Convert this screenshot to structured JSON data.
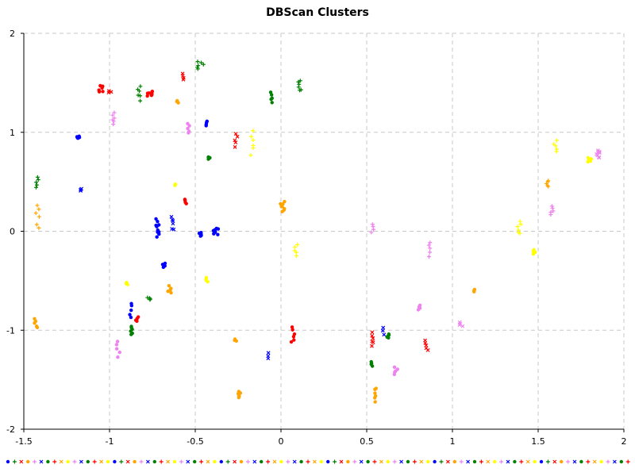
{
  "chart_data": {
    "type": "scatter",
    "title": "DBScan Clusters",
    "xlabel": "",
    "ylabel": "",
    "xlim": [
      -1.5,
      2
    ],
    "ylim": [
      -2,
      2
    ],
    "grid": true,
    "x_ticks": [
      "-1.5",
      "-1",
      "-0.5",
      "0",
      "0.5",
      "1",
      "1.5",
      "2"
    ],
    "x_tick_values": [
      -1.5,
      -1,
      -0.5,
      0,
      0.5,
      1,
      1.5,
      2
    ],
    "y_ticks": [
      "2",
      "1",
      "0",
      "-1",
      "-2"
    ],
    "y_tick_values": [
      2,
      1,
      0,
      -1,
      -2
    ],
    "palette": [
      "#0000ff",
      "#008000",
      "#ff0000",
      "#ffa500",
      "#ee82ee",
      "#ffff00"
    ],
    "legend_strip": {
      "colors": [
        "#0000ff",
        "#008000",
        "#ff0000",
        "#ffa500",
        "#ee82ee",
        "#0000ff",
        "#008000",
        "#ff0000",
        "#ffa500",
        "#ffff00",
        "#ee82ee",
        "#0000ff",
        "#008000",
        "#ff0000",
        "#ffa500",
        "#ffff00"
      ],
      "markers": [
        "dot",
        "plus",
        "cross",
        "dot",
        "plus",
        "cross",
        "dot",
        "plus",
        "cross",
        "dot",
        "plus",
        "cross",
        "dot",
        "plus",
        "cross",
        "dot"
      ]
    },
    "clusters": [
      {
        "color": "#ff0000",
        "marker": "dot",
        "x": -1.05,
        "y": 1.44,
        "n": 6,
        "dx": 0.012,
        "dy": 0.035
      },
      {
        "color": "#ff0000",
        "marker": "cross",
        "x": -1.0,
        "y": 1.41,
        "n": 3,
        "dx": 0.01,
        "dy": 0.01
      },
      {
        "color": "#ff0000",
        "marker": "dot",
        "x": -0.77,
        "y": 1.39,
        "n": 8,
        "dx": 0.02,
        "dy": 0.02
      },
      {
        "color": "#008000",
        "marker": "plus",
        "x": -0.83,
        "y": 1.4,
        "n": 6,
        "dx": 0.01,
        "dy": 0.07
      },
      {
        "color": "#ff0000",
        "marker": "cross",
        "x": -0.57,
        "y": 1.56,
        "n": 4,
        "dx": 0.01,
        "dy": 0.03
      },
      {
        "color": "#008000",
        "marker": "plus",
        "x": -0.47,
        "y": 1.68,
        "n": 6,
        "dx": 0.02,
        "dy": 0.04
      },
      {
        "color": "#ffa500",
        "marker": "dot",
        "x": -0.6,
        "y": 1.31,
        "n": 3,
        "dx": 0.01,
        "dy": 0.01
      },
      {
        "color": "#ee82ee",
        "marker": "plus",
        "x": -0.98,
        "y": 1.14,
        "n": 6,
        "dx": 0.01,
        "dy": 0.05
      },
      {
        "color": "#ee82ee",
        "marker": "dot",
        "x": -0.54,
        "y": 1.04,
        "n": 5,
        "dx": 0.01,
        "dy": 0.05
      },
      {
        "color": "#0000ff",
        "marker": "dot",
        "x": -1.18,
        "y": 0.95,
        "n": 5,
        "dx": 0.01,
        "dy": 0.01
      },
      {
        "color": "#0000ff",
        "marker": "dot",
        "x": -0.44,
        "y": 1.09,
        "n": 4,
        "dx": 0.01,
        "dy": 0.02
      },
      {
        "color": "#008000",
        "marker": "dot",
        "x": -0.42,
        "y": 0.74,
        "n": 3,
        "dx": 0.01,
        "dy": 0.01
      },
      {
        "color": "#ff0000",
        "marker": "cross",
        "x": -0.26,
        "y": 0.92,
        "n": 5,
        "dx": 0.01,
        "dy": 0.06
      },
      {
        "color": "#ffff00",
        "marker": "plus",
        "x": -0.17,
        "y": 0.9,
        "n": 6,
        "dx": 0.01,
        "dy": 0.11
      },
      {
        "color": "#008000",
        "marker": "dot",
        "x": -0.06,
        "y": 1.35,
        "n": 5,
        "dx": 0.01,
        "dy": 0.05
      },
      {
        "color": "#008000",
        "marker": "plus",
        "x": 0.11,
        "y": 1.47,
        "n": 6,
        "dx": 0.01,
        "dy": 0.05
      },
      {
        "color": "#008000",
        "marker": "plus",
        "x": -1.42,
        "y": 0.5,
        "n": 5,
        "dx": 0.01,
        "dy": 0.05
      },
      {
        "color": "#ffa500",
        "marker": "plus",
        "x": -1.42,
        "y": 0.15,
        "n": 6,
        "dx": 0.01,
        "dy": 0.11
      },
      {
        "color": "#0000ff",
        "marker": "cross",
        "x": -1.17,
        "y": 0.42,
        "n": 3,
        "dx": 0.01,
        "dy": 0.01
      },
      {
        "color": "#ffff00",
        "marker": "dot",
        "x": -0.62,
        "y": 0.47,
        "n": 2,
        "dx": 0.005,
        "dy": 0.005
      },
      {
        "color": "#ff0000",
        "marker": "dot",
        "x": -0.56,
        "y": 0.3,
        "n": 4,
        "dx": 0.01,
        "dy": 0.02
      },
      {
        "color": "#0000ff",
        "marker": "dot",
        "x": -0.72,
        "y": 0.03,
        "n": 10,
        "dx": 0.01,
        "dy": 0.08
      },
      {
        "color": "#0000ff",
        "marker": "cross",
        "x": -0.63,
        "y": 0.08,
        "n": 6,
        "dx": 0.01,
        "dy": 0.07
      },
      {
        "color": "#0000ff",
        "marker": "dot",
        "x": -0.47,
        "y": -0.03,
        "n": 5,
        "dx": 0.01,
        "dy": 0.02
      },
      {
        "color": "#0000ff",
        "marker": "dot",
        "x": -0.38,
        "y": 0.0,
        "n": 9,
        "dx": 0.015,
        "dy": 0.03
      },
      {
        "color": "#0000ff",
        "marker": "dot",
        "x": -0.68,
        "y": -0.34,
        "n": 4,
        "dx": 0.01,
        "dy": 0.02
      },
      {
        "color": "#ffa500",
        "marker": "dot",
        "x": 0.01,
        "y": 0.25,
        "n": 8,
        "dx": 0.015,
        "dy": 0.05
      },
      {
        "color": "#ffff00",
        "marker": "plus",
        "x": 0.09,
        "y": -0.19,
        "n": 5,
        "dx": 0.01,
        "dy": 0.05
      },
      {
        "color": "#ffff00",
        "marker": "dot",
        "x": -0.43,
        "y": -0.49,
        "n": 4,
        "dx": 0.01,
        "dy": 0.02
      },
      {
        "color": "#ffff00",
        "marker": "dot",
        "x": -0.9,
        "y": -0.53,
        "n": 3,
        "dx": 0.01,
        "dy": 0.01
      },
      {
        "color": "#ffa500",
        "marker": "dot",
        "x": -0.65,
        "y": -0.59,
        "n": 5,
        "dx": 0.01,
        "dy": 0.04
      },
      {
        "color": "#008000",
        "marker": "plus",
        "x": -0.77,
        "y": -0.68,
        "n": 4,
        "dx": 0.01,
        "dy": 0.01
      },
      {
        "color": "#0000ff",
        "marker": "dot",
        "x": -0.88,
        "y": -0.8,
        "n": 5,
        "dx": 0.01,
        "dy": 0.08
      },
      {
        "color": "#ff0000",
        "marker": "dot",
        "x": -0.84,
        "y": -0.89,
        "n": 4,
        "dx": 0.01,
        "dy": 0.02
      },
      {
        "color": "#008000",
        "marker": "dot",
        "x": -0.87,
        "y": -1.0,
        "n": 6,
        "dx": 0.01,
        "dy": 0.04
      },
      {
        "color": "#ee82ee",
        "marker": "dot",
        "x": -0.95,
        "y": -1.19,
        "n": 5,
        "dx": 0.01,
        "dy": 0.07
      },
      {
        "color": "#ffa500",
        "marker": "dot",
        "x": -1.43,
        "y": -0.93,
        "n": 5,
        "dx": 0.01,
        "dy": 0.05
      },
      {
        "color": "#ffa500",
        "marker": "dot",
        "x": -0.27,
        "y": -1.1,
        "n": 3,
        "dx": 0.01,
        "dy": 0.01
      },
      {
        "color": "#ffa500",
        "marker": "dot",
        "x": -0.24,
        "y": -1.65,
        "n": 6,
        "dx": 0.01,
        "dy": 0.03
      },
      {
        "color": "#0000ff",
        "marker": "cross",
        "x": -0.07,
        "y": -1.26,
        "n": 3,
        "dx": 0.01,
        "dy": 0.03
      },
      {
        "color": "#ff0000",
        "marker": "dot",
        "x": 0.07,
        "y": -1.04,
        "n": 6,
        "dx": 0.01,
        "dy": 0.08
      },
      {
        "color": "#ee82ee",
        "marker": "plus",
        "x": 0.53,
        "y": 0.03,
        "n": 4,
        "dx": 0.01,
        "dy": 0.04
      },
      {
        "color": "#ee82ee",
        "marker": "plus",
        "x": 0.86,
        "y": -0.18,
        "n": 5,
        "dx": 0.01,
        "dy": 0.07
      },
      {
        "color": "#ee82ee",
        "marker": "dot",
        "x": 0.8,
        "y": -0.77,
        "n": 4,
        "dx": 0.015,
        "dy": 0.02
      },
      {
        "color": "#ff0000",
        "marker": "cross",
        "x": 0.85,
        "y": -1.15,
        "n": 5,
        "dx": 0.01,
        "dy": 0.05
      },
      {
        "color": "#ee82ee",
        "marker": "cross",
        "x": 1.05,
        "y": -0.94,
        "n": 4,
        "dx": 0.01,
        "dy": 0.02
      },
      {
        "color": "#ffa500",
        "marker": "dot",
        "x": 1.13,
        "y": -0.6,
        "n": 3,
        "dx": 0.005,
        "dy": 0.01
      },
      {
        "color": "#ff0000",
        "marker": "cross",
        "x": 0.54,
        "y": -1.09,
        "n": 6,
        "dx": 0.01,
        "dy": 0.06
      },
      {
        "color": "#0000ff",
        "marker": "cross",
        "x": 0.6,
        "y": -1.01,
        "n": 3,
        "dx": 0.01,
        "dy": 0.03
      },
      {
        "color": "#008000",
        "marker": "dot",
        "x": 0.62,
        "y": -1.06,
        "n": 5,
        "dx": 0.01,
        "dy": 0.02
      },
      {
        "color": "#008000",
        "marker": "dot",
        "x": 0.53,
        "y": -1.34,
        "n": 4,
        "dx": 0.01,
        "dy": 0.02
      },
      {
        "color": "#ee82ee",
        "marker": "dot",
        "x": 0.67,
        "y": -1.41,
        "n": 5,
        "dx": 0.01,
        "dy": 0.04
      },
      {
        "color": "#ffa500",
        "marker": "dot",
        "x": 0.55,
        "y": -1.65,
        "n": 6,
        "dx": 0.005,
        "dy": 0.07
      },
      {
        "color": "#ffff00",
        "marker": "plus",
        "x": 1.39,
        "y": 0.03,
        "n": 6,
        "dx": 0.01,
        "dy": 0.06
      },
      {
        "color": "#ffff00",
        "marker": "dot",
        "x": 1.48,
        "y": -0.21,
        "n": 5,
        "dx": 0.01,
        "dy": 0.02
      },
      {
        "color": "#ffa500",
        "marker": "plus",
        "x": 1.55,
        "y": 0.48,
        "n": 5,
        "dx": 0.01,
        "dy": 0.03
      },
      {
        "color": "#ee82ee",
        "marker": "plus",
        "x": 1.58,
        "y": 0.21,
        "n": 5,
        "dx": 0.01,
        "dy": 0.05
      },
      {
        "color": "#ffff00",
        "marker": "plus",
        "x": 1.6,
        "y": 0.86,
        "n": 5,
        "dx": 0.01,
        "dy": 0.05
      },
      {
        "color": "#ffff00",
        "marker": "dot",
        "x": 1.8,
        "y": 0.72,
        "n": 6,
        "dx": 0.01,
        "dy": 0.02
      },
      {
        "color": "#ee82ee",
        "marker": "cross",
        "x": 1.84,
        "y": 0.78,
        "n": 8,
        "dx": 0.02,
        "dy": 0.04
      }
    ]
  }
}
